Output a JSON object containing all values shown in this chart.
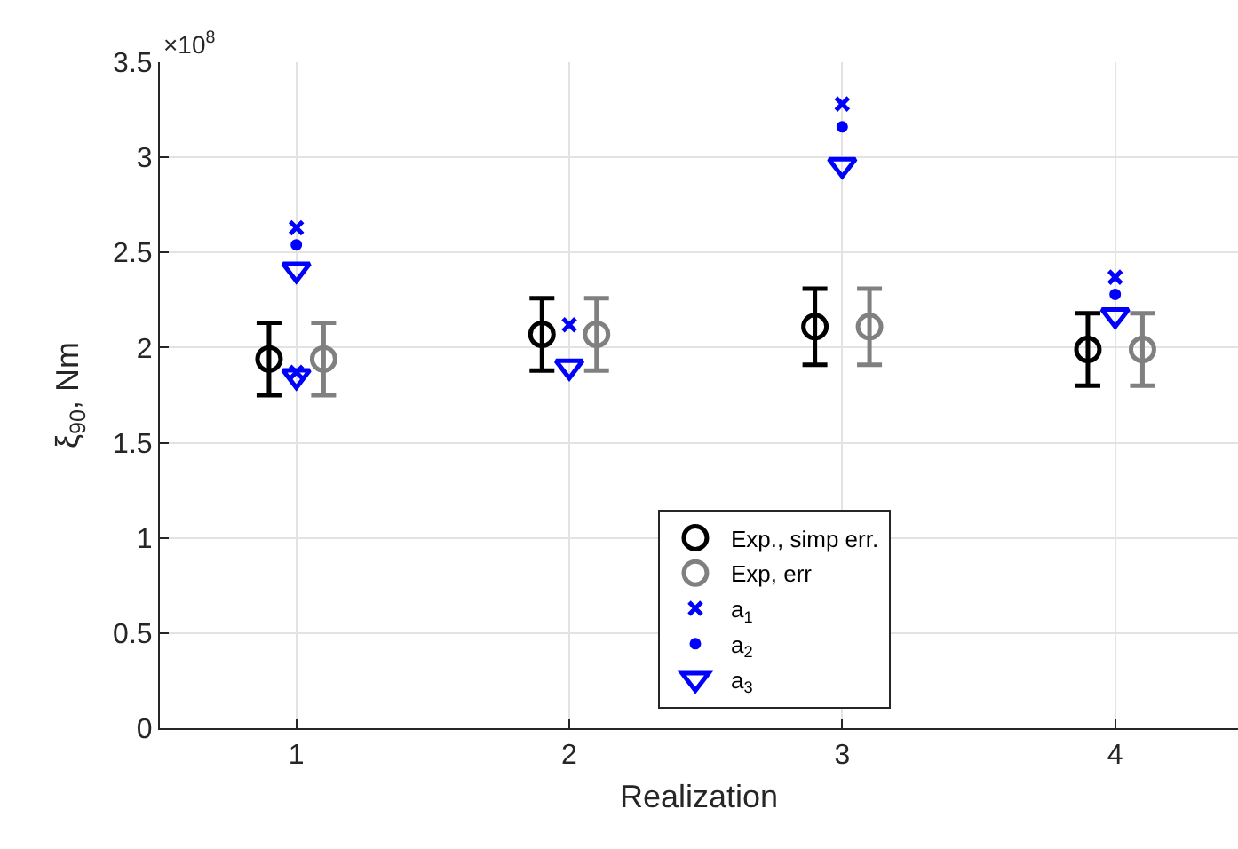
{
  "chart_data": {
    "type": "scatter",
    "xlabel": "Realization",
    "ylabel": "ξ$_{90}$, Nm",
    "annotations": [
      "×10$^{8}$"
    ],
    "xlim": [
      0.5,
      4.45
    ],
    "xticks": [
      1,
      2,
      3,
      4
    ],
    "ylim": [
      0,
      3.5
    ],
    "yticks": [
      0,
      0.5,
      1,
      1.5,
      2,
      2.5,
      3,
      3.5
    ],
    "grid": true,
    "legend": "bottom",
    "series": [
      {
        "name": "Exp., simp err.",
        "color": "#000000",
        "marker": "circle",
        "x": [
          0.9,
          1.9,
          2.9,
          3.9
        ],
        "values": [
          1.94,
          2.07,
          2.11,
          1.99
        ],
        "errors": [
          0.19,
          0.19,
          0.2,
          0.19
        ]
      },
      {
        "name": "Exp, err",
        "color": "#808080",
        "marker": "circle",
        "x": [
          1.1,
          2.1,
          3.1,
          4.1
        ],
        "values": [
          1.94,
          2.07,
          2.11,
          1.99
        ],
        "errors": [
          0.19,
          0.19,
          0.2,
          0.19
        ]
      },
      {
        "name": "a$_{1}$",
        "color": "#0000ff",
        "marker": "cross",
        "x": [
          1,
          1,
          2,
          3,
          4
        ],
        "values": [
          2.63,
          1.87,
          2.12,
          3.28,
          2.37
        ]
      },
      {
        "name": "a$_{2}$",
        "color": "#0000ff",
        "marker": "circle",
        "x": [
          1,
          3,
          4
        ],
        "values": [
          2.54,
          3.16,
          2.28
        ]
      },
      {
        "name": "a$_{3}$",
        "color": "#0000ff",
        "marker": "triangle",
        "x": [
          1,
          1,
          2,
          3,
          4
        ],
        "values": [
          2.41,
          1.85,
          1.9,
          2.96,
          2.17
        ]
      }
    ]
  }
}
